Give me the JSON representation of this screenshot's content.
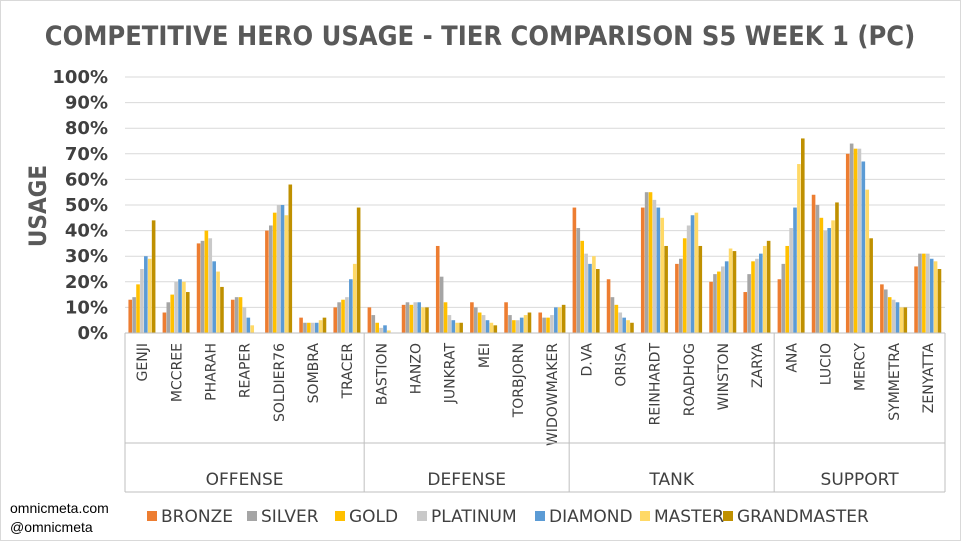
{
  "chart_data": {
    "type": "bar",
    "title": "COMPETITIVE HERO USAGE - TIER COMPARISON S5 WEEK 1 (PC)",
    "ylabel": "USAGE",
    "xlabel": "",
    "ylim": [
      0,
      100
    ],
    "yticks": [
      "0%",
      "10%",
      "20%",
      "30%",
      "40%",
      "50%",
      "60%",
      "70%",
      "80%",
      "90%",
      "100%"
    ],
    "grid": true,
    "legend_position": "bottom",
    "groups": [
      {
        "name": "OFFENSE",
        "categories": [
          "GENJI",
          "MCCREE",
          "PHARAH",
          "REAPER",
          "SOLDIER76",
          "SOMBRA",
          "TRACER"
        ]
      },
      {
        "name": "DEFENSE",
        "categories": [
          "BASTION",
          "HANZO",
          "JUNKRAT",
          "MEI",
          "TORBJORN",
          "WIDOWMAKER"
        ]
      },
      {
        "name": "TANK",
        "categories": [
          "D.VA",
          "ORISA",
          "REINHARDT",
          "ROADHOG",
          "WINSTON",
          "ZARYA"
        ]
      },
      {
        "name": "SUPPORT",
        "categories": [
          "ANA",
          "LUCIO",
          "MERCY",
          "SYMMETRA",
          "ZENYATTA"
        ]
      }
    ],
    "series": [
      {
        "name": "BRONZE",
        "color": "#ED7D31",
        "values": [
          13,
          8,
          35,
          13,
          40,
          6,
          10,
          10,
          11,
          34,
          12,
          12,
          8,
          49,
          21,
          49,
          27,
          20,
          16,
          21,
          54,
          70,
          19,
          26
        ]
      },
      {
        "name": "SILVER",
        "color": "#A5A5A5",
        "values": [
          14,
          12,
          36,
          14,
          42,
          4,
          12,
          7,
          12,
          22,
          10,
          7,
          6,
          41,
          14,
          55,
          29,
          23,
          23,
          27,
          50,
          74,
          17,
          31
        ]
      },
      {
        "name": "GOLD",
        "color": "#FFC000",
        "values": [
          19,
          15,
          40,
          14,
          47,
          4,
          13,
          4,
          11,
          12,
          8,
          5,
          6,
          36,
          11,
          55,
          37,
          24,
          28,
          34,
          45,
          72,
          14,
          31
        ]
      },
      {
        "name": "PLATINUM",
        "color": "#C9C9C9",
        "values": [
          25,
          20,
          37,
          10,
          50,
          4,
          14,
          2,
          12,
          7,
          7,
          5,
          7,
          31,
          8,
          52,
          42,
          26,
          29,
          41,
          40,
          72,
          13,
          31
        ]
      },
      {
        "name": "DIAMOND",
        "color": "#5B9BD5",
        "values": [
          30,
          21,
          28,
          6,
          50,
          4,
          21,
          3,
          12,
          5,
          5,
          6,
          10,
          27,
          6,
          49,
          46,
          28,
          31,
          49,
          41,
          67,
          12,
          29
        ]
      },
      {
        "name": "MASTER",
        "color": "#FFD966",
        "values": [
          29,
          20,
          24,
          3,
          46,
          5,
          27,
          1,
          10,
          4,
          4,
          7,
          10,
          30,
          5,
          45,
          47,
          33,
          34,
          66,
          44,
          56,
          10,
          28
        ]
      },
      {
        "name": "GRANDMASTER",
        "color": "#BF9000",
        "values": [
          44,
          16,
          18,
          0,
          58,
          6,
          49,
          0,
          10,
          4,
          3,
          8,
          11,
          25,
          4,
          34,
          34,
          32,
          36,
          76,
          51,
          37,
          10,
          25
        ]
      }
    ]
  },
  "source": {
    "line1": "omnicmeta.com",
    "line2": "@omnicmeta"
  }
}
